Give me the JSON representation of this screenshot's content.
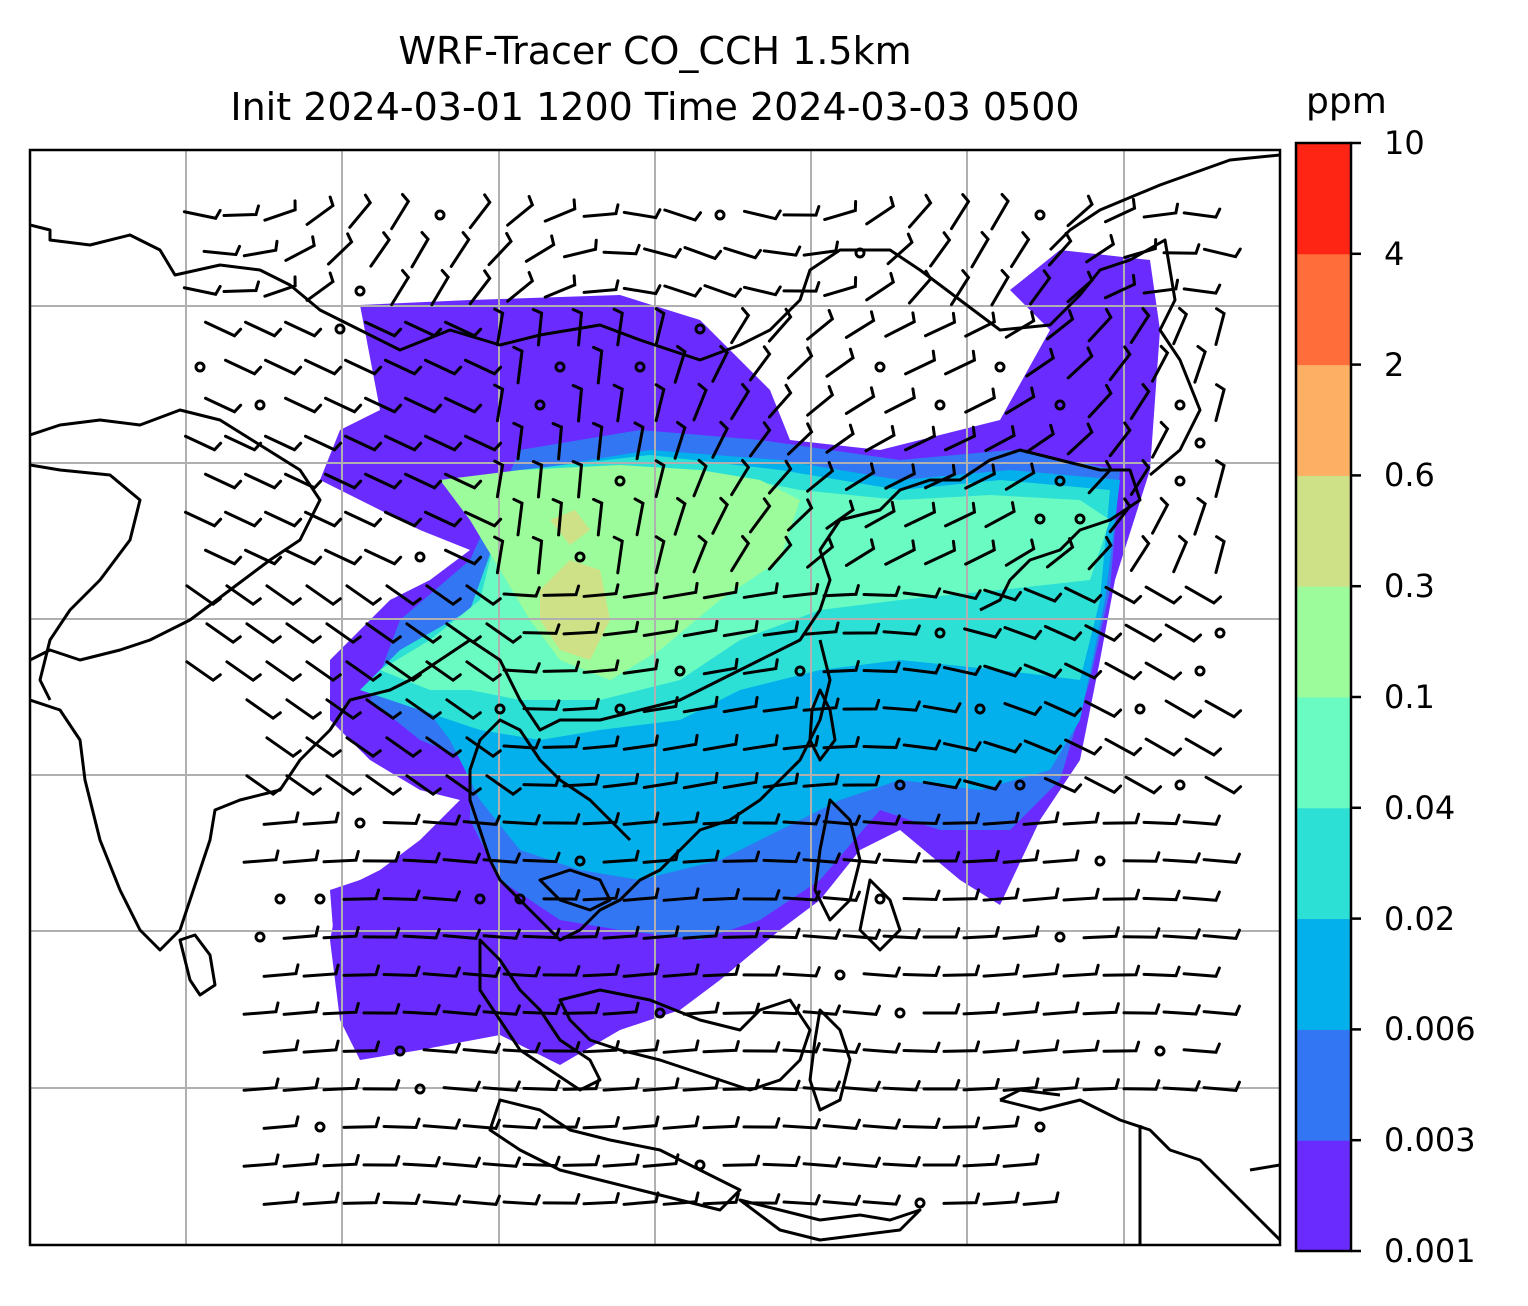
{
  "title": {
    "line1": "WRF-Tracer CO_CCH 1.5km",
    "line2": "Init 2024-03-01 1200 Time 2024-03-03 0500"
  },
  "colorbar": {
    "unit": "ppm",
    "levels": [
      "0.001",
      "0.003",
      "0.006",
      "0.02",
      "0.04",
      "0.1",
      "0.3",
      "0.6",
      "2",
      "4",
      "10"
    ],
    "colors": [
      "#6a2bff",
      "#3376f4",
      "#03b0eb",
      "#2ce0d6",
      "#69fbc2",
      "#9cfb9b",
      "#cfe187",
      "#fdaf63",
      "#ff6e3a",
      "#ff2515"
    ]
  },
  "map": {
    "gridlines": true,
    "coastline_color": "#000000",
    "grid_color": "#b0b0b0",
    "barb_color": "#000000"
  }
}
